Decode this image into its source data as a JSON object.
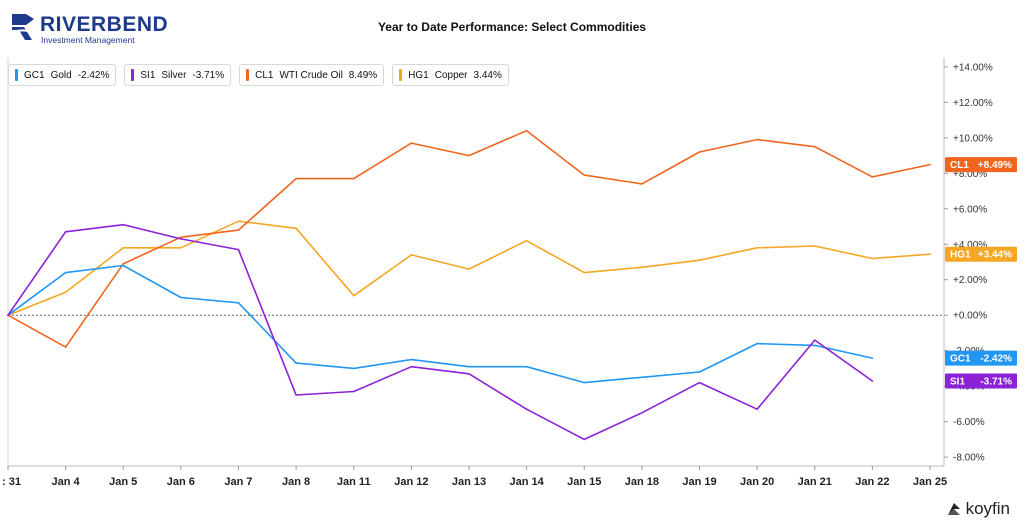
{
  "logo": {
    "name": "RIVERBEND",
    "sub": "Investment Management"
  },
  "brand": "koyfin",
  "chart_data": {
    "type": "line",
    "title": "Year to Date Performance: Select Commodities",
    "xlabel": "",
    "ylabel": "",
    "x": [
      ": 31",
      "Jan 4",
      "Jan 5",
      "Jan 6",
      "Jan 7",
      "Jan 8",
      "Jan 11",
      "Jan 12",
      "Jan 13",
      "Jan 14",
      "Jan 15",
      "Jan 18",
      "Jan 19",
      "Jan 20",
      "Jan 21",
      "Jan 22",
      "Jan 25"
    ],
    "ylim": [
      -8.5,
      14.5
    ],
    "yticks": [
      "+14.00%",
      "+12.00%",
      "+10.00%",
      "+8.00%",
      "+6.00%",
      "+4.00%",
      "+2.00%",
      "+0.00%",
      "-2.00%",
      "-4.00%",
      "-6.00%",
      "-8.00%"
    ],
    "ytick_values": [
      14,
      12,
      10,
      8,
      6,
      4,
      2,
      0,
      -2,
      -4,
      -6,
      -8
    ],
    "axis_side": "right",
    "zero_line": "dashed",
    "legend_position": "top-left",
    "series": [
      {
        "key": "GC1",
        "name": "Gold",
        "value_label": "-2.42%",
        "tag": "-2.42%",
        "color": "#2196f3",
        "values": [
          0,
          2.4,
          2.8,
          1.0,
          0.7,
          -2.7,
          -3.0,
          -2.5,
          -2.9,
          -2.9,
          -3.8,
          -3.5,
          -3.2,
          -1.6,
          -1.7,
          -2.42,
          null
        ]
      },
      {
        "key": "SI1",
        "name": "Silver",
        "value_label": "-3.71%",
        "tag": "-3.71%",
        "color": "#8b22d6",
        "values": [
          0,
          4.7,
          5.1,
          4.3,
          3.7,
          -4.5,
          -4.3,
          -2.9,
          -3.3,
          -5.3,
          -7.0,
          -5.5,
          -3.8,
          -5.3,
          -1.4,
          -3.71,
          null
        ]
      },
      {
        "key": "CL1",
        "name": "WTI Crude Oil",
        "value_label": "8.49%",
        "tag": "+8.49%",
        "color": "#f0661e",
        "values": [
          0,
          -1.8,
          2.9,
          4.4,
          4.8,
          7.7,
          7.7,
          9.7,
          9.0,
          10.4,
          7.9,
          7.4,
          9.2,
          9.9,
          9.5,
          7.8,
          8.49
        ]
      },
      {
        "key": "HG1",
        "name": "Copper",
        "value_label": "3.44%",
        "tag": "+3.44%",
        "color": "#f5a623",
        "values": [
          0,
          1.3,
          3.8,
          3.8,
          5.3,
          4.9,
          1.1,
          3.4,
          2.6,
          4.2,
          2.4,
          2.7,
          3.1,
          3.8,
          3.9,
          3.2,
          3.44
        ]
      }
    ]
  }
}
